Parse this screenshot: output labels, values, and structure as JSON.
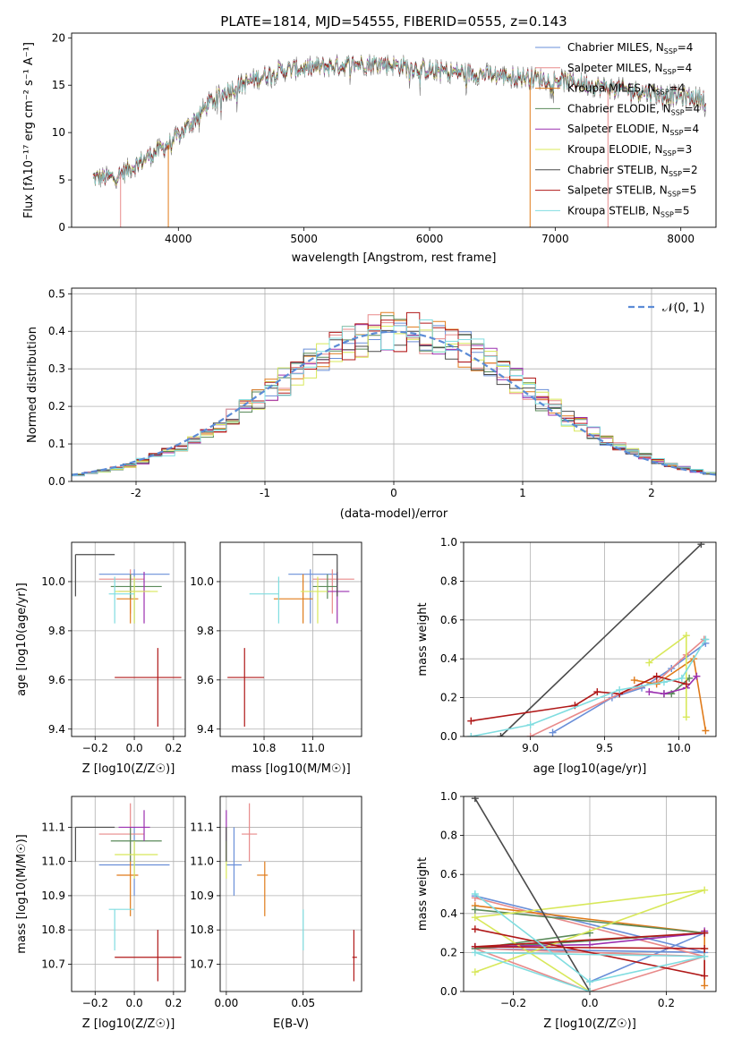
{
  "colors": {
    "chabrier_miles": "#6a8fd8",
    "salpeter_miles": "#e88a8a",
    "kroupa_miles": "#e07b1a",
    "chabrier_elodie": "#5a8a5a",
    "salpeter_elodie": "#9b30b0",
    "kroupa_elodie": "#d8e85a",
    "chabrier_stelib": "#4a4a4a",
    "salpeter_stelib": "#b01818",
    "kroupa_stelib": "#80dde0",
    "normal": "#5b8bd6",
    "grid": "#b0b0b0"
  },
  "chart_data": [
    {
      "id": "spectrum",
      "type": "line",
      "title": "PLATE=1814, MJD=54555, FIBERID=0555, z=0.143",
      "xlabel": "wavelength [Angstrom, rest frame]",
      "ylabel": "Flux [fλ10⁻¹⁷ erg cm⁻² s⁻¹ A⁻¹]",
      "xlim": [
        3150,
        8280
      ],
      "ylim": [
        0,
        20.5
      ],
      "xticks": [
        4000,
        5000,
        6000,
        7000,
        8000
      ],
      "yticks": [
        0,
        5,
        10,
        15,
        20
      ],
      "legend": [
        "Chabrier MILES, N_SSP=4",
        "Salpeter MILES, N_SSP=4",
        "Kroupa MILES, N_SSP=4",
        "Chabrier ELODIE, N_SSP=4",
        "Salpeter ELODIE, N_SSP=4",
        "Kroupa ELODIE, N_SSP=3",
        "Chabrier STELIB, N_SSP=2",
        "Salpeter STELIB, N_SSP=5",
        "Kroupa STELIB, N_SSP=5"
      ],
      "continuum": [
        [
          3320,
          5.2
        ],
        [
          3500,
          5.3
        ],
        [
          3650,
          6.5
        ],
        [
          3800,
          7.8
        ],
        [
          3950,
          9.0
        ],
        [
          4100,
          11.0
        ],
        [
          4250,
          13.2
        ],
        [
          4400,
          14.5
        ],
        [
          4600,
          15.6
        ],
        [
          4800,
          16.5
        ],
        [
          5000,
          16.8
        ],
        [
          5200,
          17.0
        ],
        [
          5400,
          17.2
        ],
        [
          5600,
          17.3
        ],
        [
          5800,
          17.0
        ],
        [
          6000,
          16.6
        ],
        [
          6200,
          16.4
        ],
        [
          6400,
          16.2
        ],
        [
          6600,
          16.0
        ],
        [
          6800,
          15.8
        ],
        [
          7000,
          15.6
        ],
        [
          7200,
          15.2
        ],
        [
          7400,
          14.8
        ],
        [
          7700,
          14.3
        ],
        [
          8000,
          13.8
        ],
        [
          8200,
          13.6
        ]
      ]
    },
    {
      "id": "residuals",
      "type": "bar",
      "xlabel": "(data-model)/error",
      "ylabel": "Normed distribution",
      "xlim": [
        -2.5,
        2.5
      ],
      "ylim": [
        0,
        0.515
      ],
      "xticks": [
        -2,
        -1,
        0,
        1,
        2
      ],
      "yticks": [
        0.0,
        0.1,
        0.2,
        0.3,
        0.4,
        0.5
      ],
      "bin_width": 0.1,
      "legend": [
        "N(0,1)"
      ]
    },
    {
      "id": "age_vs_Z",
      "type": "scatter",
      "xlabel": "Z [log10(Z/Z☉)]",
      "ylabel": "age  [log10(age/yr)]",
      "xlim": [
        -0.32,
        0.26
      ],
      "ylim": [
        9.37,
        10.16
      ],
      "xticks": [
        -0.2,
        0.0,
        0.2
      ],
      "yticks": [
        9.4,
        9.6,
        9.8,
        10.0
      ]
    },
    {
      "id": "age_vs_mass",
      "type": "scatter",
      "xlabel": "mass [log10(M/M☉)]",
      "ylabel": "",
      "xlim": [
        10.62,
        11.2
      ],
      "ylim": [
        9.37,
        10.16
      ],
      "xticks": [
        10.8,
        11.0
      ],
      "yticks": [
        9.4,
        9.6,
        9.8,
        10.0
      ]
    },
    {
      "id": "massweight_vs_age",
      "type": "line",
      "xlabel": "age  [log10(age/yr)]",
      "ylabel": "mass weight",
      "xlim": [
        8.55,
        10.25
      ],
      "ylim": [
        0,
        1.0
      ],
      "xticks": [
        9.0,
        9.5,
        10.0
      ],
      "yticks": [
        0.0,
        0.2,
        0.4,
        0.6,
        0.8,
        1.0
      ]
    },
    {
      "id": "mass_vs_Z",
      "type": "scatter",
      "xlabel": "Z [log10(Z/Z☉)]",
      "ylabel": "mass [log10(M/M☉)]",
      "xlim": [
        -0.32,
        0.26
      ],
      "ylim": [
        10.62,
        11.19
      ],
      "xticks": [
        -0.2,
        0.0,
        0.2
      ],
      "yticks": [
        10.7,
        10.8,
        10.9,
        11.0,
        11.1
      ]
    },
    {
      "id": "mass_vs_ebv",
      "type": "scatter",
      "xlabel": "E(B-V)",
      "ylabel": "",
      "xlim": [
        -0.004,
        0.088
      ],
      "ylim": [
        10.62,
        11.19
      ],
      "xticks": [
        0.0,
        0.05
      ],
      "yticks": [
        10.7,
        10.8,
        10.9,
        11.0,
        11.1
      ]
    },
    {
      "id": "massweight_vs_Z",
      "type": "line",
      "xlabel": "Z [log10(Z/Z☉)]",
      "ylabel": "mass weight",
      "xlim": [
        -0.33,
        0.33
      ],
      "ylim": [
        0,
        1.0
      ],
      "xticks": [
        -0.2,
        0.0,
        0.2
      ],
      "yticks": [
        0.0,
        0.2,
        0.4,
        0.6,
        0.8,
        1.0
      ]
    }
  ],
  "fits": [
    {
      "key": "chabrier_miles",
      "Z": 0.0,
      "Zlo": -0.18,
      "Zhi": 0.18,
      "age": 10.03,
      "ageLo": 9.83,
      "ageHi": 10.05,
      "mass": 10.99,
      "massLo": 10.9,
      "massHi": 11.1,
      "ebv": 0.005,
      "ebvLo": 0.0,
      "ebvHi": 0.01,
      "ages": [
        9.15,
        9.55,
        9.75,
        9.95,
        10.18
      ],
      "weights": [
        0.02,
        0.2,
        0.25,
        0.35,
        0.48
      ],
      "Zs": [
        -0.3,
        0.3,
        -0.3,
        0.3,
        0.0
      ],
      "Zw": [
        0.49,
        0.2,
        0.22,
        0.3,
        0.05
      ]
    },
    {
      "key": "salpeter_miles",
      "Z": -0.02,
      "Zlo": -0.18,
      "Zhi": 0.05,
      "age": 10.01,
      "ageLo": 9.87,
      "ageHi": 10.05,
      "mass": 11.08,
      "massLo": 11.0,
      "massHi": 11.17,
      "ebv": 0.015,
      "ebvLo": 0.01,
      "ebvHi": 0.02,
      "ages": [
        9.0,
        9.6,
        9.85,
        10.05,
        10.17
      ],
      "weights": [
        0.0,
        0.22,
        0.28,
        0.42,
        0.5
      ],
      "Zs": [
        -0.3,
        0.3,
        -0.3,
        0.0,
        0.3
      ],
      "Zw": [
        0.48,
        0.18,
        0.22,
        0.0,
        0.18
      ]
    },
    {
      "key": "kroupa_miles",
      "Z": -0.02,
      "Zlo": -0.09,
      "Zhi": 0.02,
      "age": 9.93,
      "ageLo": 9.83,
      "ageHi": 10.03,
      "mass": 10.96,
      "massLo": 10.84,
      "massHi": 11.0,
      "ebv": 0.025,
      "ebvLo": 0.02,
      "ebvHi": 0.027,
      "ages": [
        9.7,
        9.85,
        10.1,
        10.18
      ],
      "weights": [
        0.29,
        0.27,
        0.4,
        0.03
      ],
      "Zs": [
        -0.3,
        0.3,
        0.3,
        0.3
      ],
      "Zw": [
        0.44,
        0.3,
        0.22,
        0.03
      ]
    },
    {
      "key": "chabrier_elodie",
      "Z": -0.02,
      "Zlo": -0.12,
      "Zhi": 0.14,
      "age": 9.98,
      "ageLo": 9.93,
      "ageHi": 10.03,
      "mass": 11.06,
      "massLo": 11.0,
      "massHi": 11.1,
      "ebv": 0.0,
      "ebvLo": 0.0,
      "ebvHi": 0.0,
      "ages": [
        9.9,
        9.95,
        10.07
      ],
      "weights": [
        0.22,
        0.22,
        0.3
      ],
      "Zs": [
        -0.3,
        0.3,
        -0.3,
        0.0
      ],
      "Zw": [
        0.42,
        0.3,
        0.22,
        0.3
      ]
    },
    {
      "key": "salpeter_elodie",
      "Z": 0.05,
      "Zlo": -0.08,
      "Zhi": 0.08,
      "age": 9.96,
      "ageLo": 9.83,
      "ageHi": 10.04,
      "mass": 11.1,
      "massLo": 11.06,
      "massHi": 11.15,
      "ebv": 0.0,
      "ebvLo": 0.0,
      "ebvHi": 0.0,
      "ages": [
        9.8,
        9.9,
        10.05,
        10.12
      ],
      "weights": [
        0.23,
        0.22,
        0.25,
        0.31
      ],
      "Zs": [
        -0.3,
        0.0,
        0.3,
        0.3
      ],
      "Zw": [
        0.23,
        0.24,
        0.3,
        0.31
      ]
    },
    {
      "key": "kroupa_elodie",
      "Z": 0.0,
      "Zlo": -0.1,
      "Zhi": 0.12,
      "age": 9.96,
      "ageLo": 9.83,
      "ageHi": 10.02,
      "mass": 11.02,
      "massLo": 10.95,
      "massHi": 11.06,
      "ebv": 0.0,
      "ebvLo": 0.0,
      "ebvHi": 0.0,
      "ages": [
        9.8,
        10.05,
        10.05
      ],
      "weights": [
        0.38,
        0.52,
        0.1
      ],
      "Zs": [
        -0.3,
        0.3,
        -0.3,
        0.0
      ],
      "Zw": [
        0.1,
        0.52,
        0.38,
        0.0
      ]
    },
    {
      "key": "chabrier_stelib",
      "Z": -0.3,
      "Zlo": -0.3,
      "Zhi": -0.1,
      "age": 10.11,
      "ageLo": 9.94,
      "ageHi": 10.11,
      "mass": 11.1,
      "massLo": 11.0,
      "massHi": 11.1,
      "ebv": 0.0,
      "ebvLo": 0.0,
      "ebvHi": 0.0,
      "ages": [
        8.8,
        10.15
      ],
      "weights": [
        0.0,
        0.99
      ],
      "Zs": [
        -0.3,
        0.0
      ],
      "Zw": [
        0.99,
        0.0
      ]
    },
    {
      "key": "salpeter_stelib",
      "Z": 0.12,
      "Zlo": -0.1,
      "Zhi": 0.24,
      "age": 9.61,
      "ageLo": 9.41,
      "ageHi": 9.73,
      "mass": 10.72,
      "massLo": 10.65,
      "massHi": 10.8,
      "ebv": 0.083,
      "ebvLo": 0.082,
      "ebvHi": 0.085,
      "ages": [
        8.6,
        9.3,
        9.45,
        9.6,
        9.85,
        10.05
      ],
      "weights": [
        0.08,
        0.16,
        0.23,
        0.22,
        0.31,
        0.27
      ],
      "Zs": [
        -0.3,
        0.3,
        0.3,
        -0.3,
        0.3
      ],
      "Zw": [
        0.32,
        0.08,
        0.22,
        0.23,
        0.3
      ]
    },
    {
      "key": "kroupa_stelib",
      "Z": -0.1,
      "Zlo": -0.13,
      "Zhi": 0.0,
      "age": 9.95,
      "ageLo": 9.83,
      "ageHi": 10.02,
      "mass": 10.86,
      "massLo": 10.74,
      "massHi": 10.86,
      "ebv": 0.05,
      "ebvLo": 0.05,
      "ebvHi": 0.05,
      "ages": [
        8.6,
        9.0,
        9.6,
        9.9,
        10.02,
        10.18
      ],
      "weights": [
        0.0,
        0.06,
        0.24,
        0.28,
        0.3,
        0.5
      ],
      "Zs": [
        -0.3,
        0.0,
        0.3,
        -0.3,
        0.0
      ],
      "Zw": [
        0.5,
        0.05,
        0.18,
        0.2,
        0.0
      ]
    }
  ]
}
